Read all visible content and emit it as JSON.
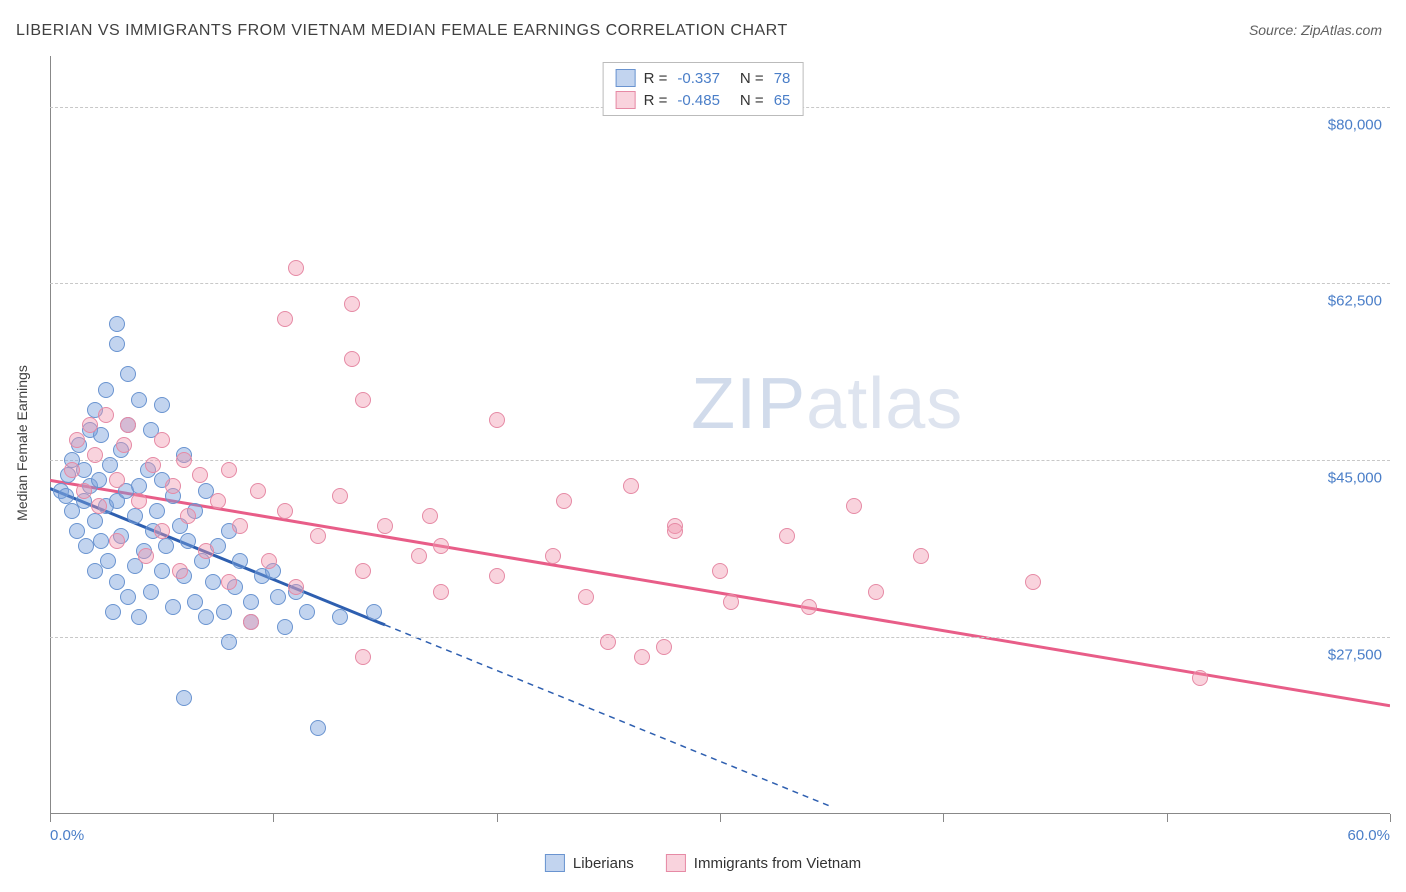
{
  "title": "LIBERIAN VS IMMIGRANTS FROM VIETNAM MEDIAN FEMALE EARNINGS CORRELATION CHART",
  "source": "Source: ZipAtlas.com",
  "watermark_bold": "ZIP",
  "watermark_thin": "atlas",
  "y_axis_title": "Median Female Earnings",
  "chart": {
    "type": "scatter",
    "xlim": [
      0,
      60
    ],
    "ylim": [
      10000,
      85000
    ],
    "x_tick_positions": [
      0,
      10,
      20,
      30,
      40,
      50,
      60
    ],
    "x_label_min": "0.0%",
    "x_label_max": "60.0%",
    "y_gridlines": [
      27500,
      45000,
      62500,
      80000
    ],
    "y_tick_labels": [
      "$27,500",
      "$45,000",
      "$62,500",
      "$80,000"
    ],
    "background_color": "#ffffff",
    "grid_color": "#c8c8c8",
    "marker_radius": 8,
    "series": [
      {
        "name": "Liberians",
        "fill": "rgba(120,160,220,0.45)",
        "stroke": "#6a94d0",
        "trend_color": "#2e5fb0",
        "trend_solid": [
          [
            0,
            43000
          ],
          [
            15,
            29500
          ]
        ],
        "trend_dashed": [
          [
            15,
            29500
          ],
          [
            35,
            11500
          ]
        ],
        "points": [
          [
            0.5,
            42000
          ],
          [
            0.7,
            41500
          ],
          [
            0.8,
            43500
          ],
          [
            1.0,
            40000
          ],
          [
            1.0,
            45000
          ],
          [
            1.2,
            38000
          ],
          [
            1.3,
            46500
          ],
          [
            1.5,
            44000
          ],
          [
            1.5,
            41000
          ],
          [
            1.6,
            36500
          ],
          [
            1.8,
            48000
          ],
          [
            1.8,
            42500
          ],
          [
            2.0,
            39000
          ],
          [
            2.0,
            50000
          ],
          [
            2.0,
            34000
          ],
          [
            2.2,
            43000
          ],
          [
            2.3,
            47500
          ],
          [
            2.3,
            37000
          ],
          [
            2.5,
            40500
          ],
          [
            2.5,
            52000
          ],
          [
            2.6,
            35000
          ],
          [
            2.7,
            44500
          ],
          [
            2.8,
            30000
          ],
          [
            3.0,
            41000
          ],
          [
            3.0,
            56500
          ],
          [
            3.0,
            33000
          ],
          [
            3.0,
            58500
          ],
          [
            3.2,
            37500
          ],
          [
            3.2,
            46000
          ],
          [
            3.4,
            42000
          ],
          [
            3.5,
            31500
          ],
          [
            3.5,
            48500
          ],
          [
            3.5,
            53500
          ],
          [
            3.8,
            39500
          ],
          [
            3.8,
            34500
          ],
          [
            4.0,
            42500
          ],
          [
            4.0,
            51000
          ],
          [
            4.0,
            29500
          ],
          [
            4.2,
            36000
          ],
          [
            4.4,
            44000
          ],
          [
            4.5,
            32000
          ],
          [
            4.5,
            48000
          ],
          [
            4.6,
            38000
          ],
          [
            4.8,
            40000
          ],
          [
            5.0,
            34000
          ],
          [
            5.0,
            43000
          ],
          [
            5.0,
            50500
          ],
          [
            5.2,
            36500
          ],
          [
            5.5,
            30500
          ],
          [
            5.5,
            41500
          ],
          [
            5.8,
            38500
          ],
          [
            6.0,
            33500
          ],
          [
            6.0,
            45500
          ],
          [
            6.0,
            21500
          ],
          [
            6.2,
            37000
          ],
          [
            6.5,
            31000
          ],
          [
            6.5,
            40000
          ],
          [
            6.8,
            35000
          ],
          [
            7.0,
            29500
          ],
          [
            7.0,
            42000
          ],
          [
            7.3,
            33000
          ],
          [
            7.5,
            36500
          ],
          [
            7.8,
            30000
          ],
          [
            8.0,
            38000
          ],
          [
            8.0,
            27000
          ],
          [
            8.3,
            32500
          ],
          [
            8.5,
            35000
          ],
          [
            9.0,
            31000
          ],
          [
            9.0,
            29000
          ],
          [
            9.5,
            33500
          ],
          [
            10.0,
            34000
          ],
          [
            10.2,
            31500
          ],
          [
            10.5,
            28500
          ],
          [
            11.0,
            32000
          ],
          [
            11.5,
            30000
          ],
          [
            12.0,
            18500
          ],
          [
            13.0,
            29500
          ],
          [
            14.5,
            30000
          ]
        ]
      },
      {
        "name": "Immigrants from Vietnam",
        "fill": "rgba(240,150,175,0.42)",
        "stroke": "#e68aa5",
        "trend_color": "#e85d88",
        "trend_solid": [
          [
            0,
            43800
          ],
          [
            60,
            21500
          ]
        ],
        "trend_dashed": null,
        "points": [
          [
            1.0,
            44000
          ],
          [
            1.2,
            47000
          ],
          [
            1.5,
            42000
          ],
          [
            1.8,
            48500
          ],
          [
            2.0,
            45500
          ],
          [
            2.2,
            40500
          ],
          [
            2.5,
            49500
          ],
          [
            3.0,
            43000
          ],
          [
            3.0,
            37000
          ],
          [
            3.3,
            46500
          ],
          [
            3.5,
            48500
          ],
          [
            4.0,
            41000
          ],
          [
            4.3,
            35500
          ],
          [
            4.6,
            44500
          ],
          [
            5.0,
            47000
          ],
          [
            5.0,
            38000
          ],
          [
            5.5,
            42500
          ],
          [
            5.8,
            34000
          ],
          [
            6.0,
            45000
          ],
          [
            6.2,
            39500
          ],
          [
            6.7,
            43500
          ],
          [
            7.0,
            36000
          ],
          [
            7.5,
            41000
          ],
          [
            8.0,
            33000
          ],
          [
            8.0,
            44000
          ],
          [
            8.5,
            38500
          ],
          [
            9.0,
            29000
          ],
          [
            9.3,
            42000
          ],
          [
            9.8,
            35000
          ],
          [
            10.5,
            59000
          ],
          [
            10.5,
            40000
          ],
          [
            11.0,
            32500
          ],
          [
            11.0,
            64000
          ],
          [
            12.0,
            37500
          ],
          [
            13.0,
            41500
          ],
          [
            13.5,
            55000
          ],
          [
            13.5,
            60500
          ],
          [
            14.0,
            34000
          ],
          [
            14.0,
            25500
          ],
          [
            14.0,
            51000
          ],
          [
            15.0,
            38500
          ],
          [
            16.5,
            35500
          ],
          [
            17.0,
            39500
          ],
          [
            17.5,
            32000
          ],
          [
            17.5,
            36500
          ],
          [
            20.0,
            49000
          ],
          [
            20.0,
            33500
          ],
          [
            22.5,
            35500
          ],
          [
            23.0,
            41000
          ],
          [
            24.0,
            31500
          ],
          [
            25.0,
            27000
          ],
          [
            26.0,
            42500
          ],
          [
            26.5,
            25500
          ],
          [
            27.5,
            26500
          ],
          [
            28.0,
            38500
          ],
          [
            28.0,
            38000
          ],
          [
            30.0,
            34000
          ],
          [
            30.5,
            31000
          ],
          [
            33.0,
            37500
          ],
          [
            34.0,
            30500
          ],
          [
            36.0,
            40500
          ],
          [
            37.0,
            32000
          ],
          [
            39.0,
            35500
          ],
          [
            44.0,
            33000
          ],
          [
            51.5,
            23500
          ]
        ]
      }
    ]
  },
  "legend_top": [
    {
      "swatch_fill": "rgba(120,160,220,0.45)",
      "swatch_stroke": "#6a94d0",
      "r": "-0.337",
      "n": "78"
    },
    {
      "swatch_fill": "rgba(240,150,175,0.42)",
      "swatch_stroke": "#e68aa5",
      "r": "-0.485",
      "n": "65"
    }
  ],
  "legend_bottom": [
    {
      "swatch_fill": "rgba(120,160,220,0.45)",
      "swatch_stroke": "#6a94d0",
      "label": "Liberians"
    },
    {
      "swatch_fill": "rgba(240,150,175,0.42)",
      "swatch_stroke": "#e68aa5",
      "label": "Immigrants from Vietnam"
    }
  ],
  "labels": {
    "r": "R =",
    "n": "N ="
  }
}
